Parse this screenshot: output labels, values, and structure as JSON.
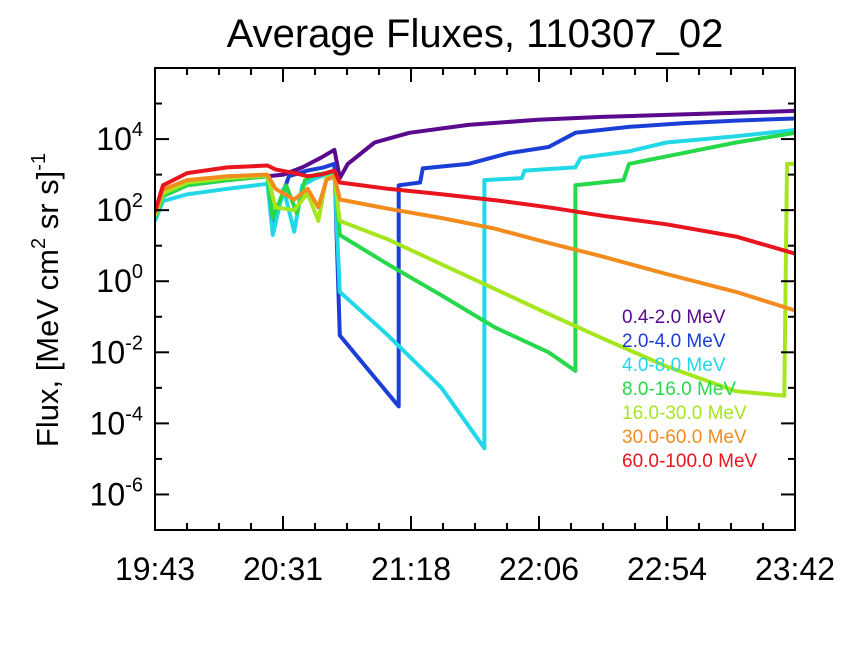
{
  "chart_data": {
    "type": "line",
    "title": "Average Fluxes, 110307_02",
    "ylabel": {
      "prefix": "Flux, [MeV cm",
      "sup1": "2",
      "mid": " sr s]",
      "sup2": "-1"
    },
    "xlabel": "",
    "y_scale": "log",
    "ylim": [
      1e-07,
      1000000.0
    ],
    "y_ticks": [
      {
        "base": "10",
        "exp": "4",
        "value": 10000.0
      },
      {
        "base": "10",
        "exp": "2",
        "value": 100.0
      },
      {
        "base": "10",
        "exp": "0",
        "value": 1
      },
      {
        "base": "10",
        "exp": "-2",
        "value": 0.01
      },
      {
        "base": "10",
        "exp": "-4",
        "value": 0.0001
      },
      {
        "base": "10",
        "exp": "-6",
        "value": 1e-06
      }
    ],
    "xlim": [
      "19:43",
      "23:42"
    ],
    "x_ticks": [
      "19:43",
      "20:31",
      "21:18",
      "22:06",
      "22:54",
      "23:42"
    ],
    "grid": false,
    "legend_position": "right",
    "series": [
      {
        "name": "0.4-2.0 MeV",
        "color": "#5a0a8c",
        "points": [
          [
            "19:43",
            60
          ],
          [
            "19:46",
            250
          ],
          [
            "19:55",
            500
          ],
          [
            "20:10",
            700
          ],
          [
            "20:25",
            900
          ],
          [
            "20:31",
            1000
          ],
          [
            "20:38",
            1600
          ],
          [
            "20:45",
            3000
          ],
          [
            "20:50",
            5000
          ],
          [
            "20:52",
            800
          ],
          [
            "20:55",
            2000
          ],
          [
            "21:05",
            8000
          ],
          [
            "21:18",
            15000
          ],
          [
            "21:40",
            25000
          ],
          [
            "22:06",
            35000
          ],
          [
            "22:30",
            42000
          ],
          [
            "22:54",
            48000
          ],
          [
            "23:20",
            55000
          ],
          [
            "23:42",
            62000
          ]
        ]
      },
      {
        "name": "2.0-4.0 MeV",
        "color": "#1a3ed6",
        "points": [
          [
            "19:43",
            60
          ],
          [
            "19:46",
            300
          ],
          [
            "19:55",
            550
          ],
          [
            "20:10",
            750
          ],
          [
            "20:25",
            950
          ],
          [
            "20:27",
            35
          ],
          [
            "20:30",
            200
          ],
          [
            "20:33",
            900
          ],
          [
            "20:40",
            1300
          ],
          [
            "20:46",
            1600
          ],
          [
            "20:50",
            2000
          ],
          [
            "20:52",
            0.03
          ],
          [
            "21:14",
            0.0003
          ],
          [
            "21:14",
            500
          ],
          [
            "21:22",
            600
          ],
          [
            "21:23",
            1500
          ],
          [
            "21:40",
            2000
          ],
          [
            "21:55",
            4000
          ],
          [
            "22:10",
            6000
          ],
          [
            "22:20",
            15000
          ],
          [
            "22:40",
            22000
          ],
          [
            "23:00",
            28000
          ],
          [
            "23:20",
            33000
          ],
          [
            "23:42",
            38000
          ]
        ]
      },
      {
        "name": "4.0-8.0 MeV",
        "color": "#22d8e8",
        "points": [
          [
            "19:43",
            50
          ],
          [
            "19:46",
            180
          ],
          [
            "19:55",
            280
          ],
          [
            "20:10",
            400
          ],
          [
            "20:25",
            550
          ],
          [
            "20:27",
            20
          ],
          [
            "20:31",
            400
          ],
          [
            "20:35",
            25
          ],
          [
            "20:38",
            500
          ],
          [
            "20:43",
            800
          ],
          [
            "20:47",
            1000
          ],
          [
            "20:50",
            1200
          ],
          [
            "20:52",
            0.5
          ],
          [
            "21:10",
            0.03
          ],
          [
            "21:30",
            0.001
          ],
          [
            "21:46",
            2e-05
          ],
          [
            "21:46",
            700
          ],
          [
            "22:00",
            800
          ],
          [
            "22:01",
            1300
          ],
          [
            "22:20",
            1600
          ],
          [
            "22:22",
            3000
          ],
          [
            "22:40",
            4500
          ],
          [
            "22:54",
            8000
          ],
          [
            "23:20",
            12000
          ],
          [
            "23:42",
            18000
          ]
        ]
      },
      {
        "name": "8.0-16.0 MeV",
        "color": "#27d84a",
        "points": [
          [
            "19:43",
            60
          ],
          [
            "19:46",
            250
          ],
          [
            "19:55",
            500
          ],
          [
            "20:10",
            700
          ],
          [
            "20:25",
            900
          ],
          [
            "20:27",
            60
          ],
          [
            "20:32",
            500
          ],
          [
            "20:36",
            80
          ],
          [
            "20:39",
            700
          ],
          [
            "20:43",
            1000
          ],
          [
            "20:47",
            1100
          ],
          [
            "20:50",
            1200
          ],
          [
            "20:52",
            20
          ],
          [
            "21:10",
            3
          ],
          [
            "21:30",
            0.4
          ],
          [
            "21:50",
            0.05
          ],
          [
            "22:10",
            0.01
          ],
          [
            "22:20",
            0.003
          ],
          [
            "22:20",
            500
          ],
          [
            "22:38",
            700
          ],
          [
            "22:40",
            2000
          ],
          [
            "23:00",
            4000
          ],
          [
            "23:20",
            8000
          ],
          [
            "23:42",
            15000
          ]
        ]
      },
      {
        "name": "16.0-30.0 MeV",
        "color": "#a6e61e",
        "points": [
          [
            "19:43",
            70
          ],
          [
            "19:46",
            300
          ],
          [
            "19:55",
            600
          ],
          [
            "20:10",
            800
          ],
          [
            "20:25",
            950
          ],
          [
            "20:28",
            120
          ],
          [
            "20:35",
            100
          ],
          [
            "20:40",
            300
          ],
          [
            "20:44",
            50
          ],
          [
            "20:47",
            800
          ],
          [
            "20:50",
            900
          ],
          [
            "20:52",
            50
          ],
          [
            "21:10",
            15
          ],
          [
            "21:30",
            3
          ],
          [
            "21:50",
            0.6
          ],
          [
            "22:10",
            0.12
          ],
          [
            "22:30",
            0.025
          ],
          [
            "22:54",
            0.004
          ],
          [
            "23:20",
            0.0008
          ],
          [
            "23:38",
            0.0006
          ],
          [
            "23:39",
            2000
          ],
          [
            "23:42",
            2000
          ]
        ]
      },
      {
        "name": "30.0-60.0 MeV",
        "color": "#f28c1e",
        "points": [
          [
            "19:43",
            80
          ],
          [
            "19:46",
            380
          ],
          [
            "19:55",
            700
          ],
          [
            "20:10",
            900
          ],
          [
            "20:25",
            1000
          ],
          [
            "20:28",
            400
          ],
          [
            "20:35",
            200
          ],
          [
            "20:40",
            400
          ],
          [
            "20:44",
            120
          ],
          [
            "20:47",
            700
          ],
          [
            "20:50",
            900
          ],
          [
            "20:52",
            200
          ],
          [
            "21:10",
            110
          ],
          [
            "21:30",
            60
          ],
          [
            "21:50",
            30
          ],
          [
            "22:10",
            12
          ],
          [
            "22:30",
            5
          ],
          [
            "22:54",
            1.6
          ],
          [
            "23:20",
            0.5
          ],
          [
            "23:42",
            0.15
          ]
        ]
      },
      {
        "name": "60.0-100.0 MeV",
        "color": "#e8141e",
        "points": [
          [
            "19:43",
            90
          ],
          [
            "19:46",
            500
          ],
          [
            "19:55",
            1100
          ],
          [
            "20:10",
            1600
          ],
          [
            "20:25",
            1800
          ],
          [
            "20:28",
            1400
          ],
          [
            "20:35",
            1100
          ],
          [
            "20:40",
            900
          ],
          [
            "20:45",
            1000
          ],
          [
            "20:50",
            1300
          ],
          [
            "20:52",
            600
          ],
          [
            "21:10",
            400
          ],
          [
            "21:30",
            280
          ],
          [
            "21:50",
            190
          ],
          [
            "22:10",
            120
          ],
          [
            "22:30",
            70
          ],
          [
            "22:54",
            40
          ],
          [
            "23:20",
            18
          ],
          [
            "23:42",
            6
          ]
        ]
      }
    ]
  }
}
